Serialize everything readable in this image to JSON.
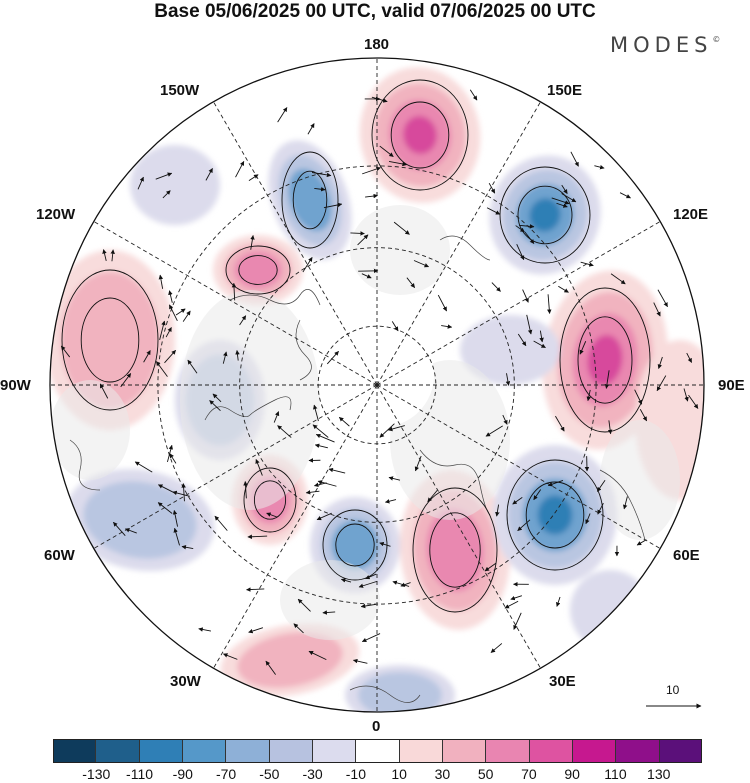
{
  "title": "Base 05/06/2025 00 UTC, valid 07/06/2025 00 UTC",
  "logo": "MODES",
  "logo_mark": "©",
  "map": {
    "projection": "north-polar-stereographic",
    "longitude_labels": {
      "top": "180",
      "top_right": "150E",
      "upper_right": "120E",
      "right": "90E",
      "lower_right": "60E",
      "bottom_right": "30E",
      "bottom": "0",
      "bottom_left": "30W",
      "lower_left": "60W",
      "left": "90W",
      "upper_left": "120W",
      "top_left": "150W"
    },
    "colors": {
      "neg_strong": "#2d7fb5",
      "neg_mid": "#6fa3cf",
      "neg_weak": "#b9c6e1",
      "neg_faint": "#dcdbec",
      "pos_faint": "#f8dcdc",
      "pos_weak": "#f1b3bf",
      "pos_mid": "#e988b0",
      "pos_strong": "#d74a9c",
      "land_gray": "#eaeaea"
    }
  },
  "vector_reference": {
    "value": "10"
  },
  "colorbar": {
    "ticks": [
      "-130",
      "-110",
      "-90",
      "-70",
      "-50",
      "-30",
      "-10",
      "10",
      "30",
      "50",
      "70",
      "90",
      "110",
      "130"
    ],
    "colors": [
      "#0e3b5c",
      "#1f5f8b",
      "#2f7fb6",
      "#5598c9",
      "#8eb0d7",
      "#b7c2e0",
      "#dcdcee",
      "#ffffff",
      "#f9d9d9",
      "#f1b1bf",
      "#e985b1",
      "#de53a1",
      "#c6188f",
      "#8f0f8a",
      "#5b107a"
    ]
  }
}
